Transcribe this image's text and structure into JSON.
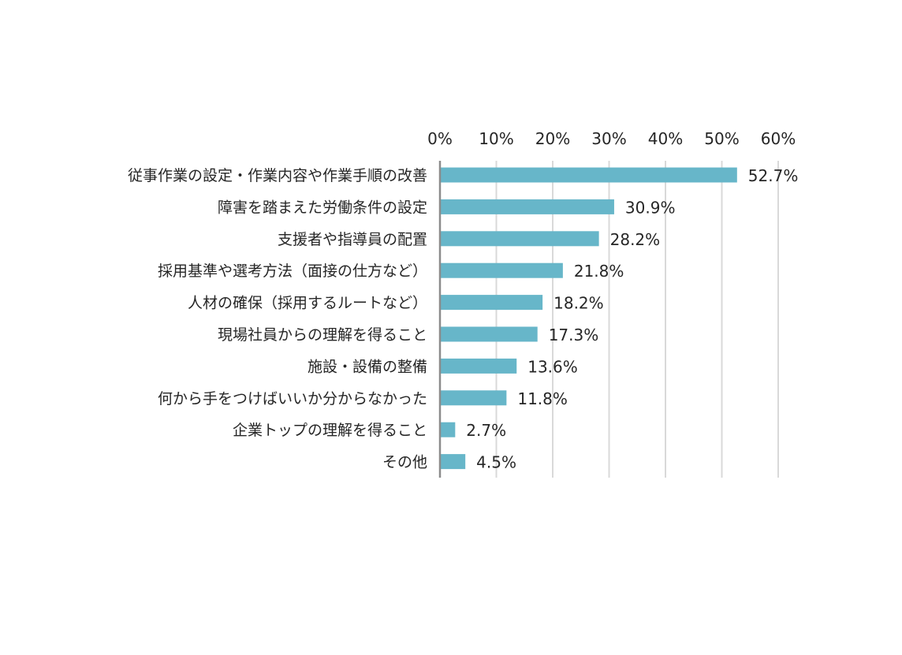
{
  "chart_data": {
    "type": "bar",
    "orientation": "horizontal",
    "categories": [
      "従事作業の設定・作業内容や作業手順の改善",
      "障害を踏まえた労働条件の設定",
      "支援者や指導員の配置",
      "採用基準や選考方法（面接の仕方など）",
      "人材の確保（採用するルートなど）",
      "現場社員からの理解を得ること",
      "施設・設備の整備",
      "何から手をつけばいいか分からなかった",
      "企業トップの理解を得ること",
      "その他"
    ],
    "values": [
      52.7,
      30.9,
      28.2,
      21.8,
      18.2,
      17.3,
      13.6,
      11.8,
      2.7,
      4.5
    ],
    "value_labels": [
      "52.7%",
      "30.9%",
      "28.2%",
      "21.8%",
      "18.2%",
      "17.3%",
      "13.6%",
      "11.8%",
      "2.7%",
      "4.5%"
    ],
    "xlim": [
      0,
      60
    ],
    "x_ticks": [
      0,
      10,
      20,
      30,
      40,
      50,
      60
    ],
    "x_tick_labels": [
      "0%",
      "10%",
      "20%",
      "30%",
      "40%",
      "50%",
      "60%"
    ],
    "x_axis_position": "top",
    "grid": true,
    "title": "",
    "xlabel": "",
    "ylabel": "",
    "colors": {
      "bar": "#67b6c9",
      "grid": "#d9d9d9",
      "axis": "#8c8c8c",
      "text": "#262626"
    }
  }
}
